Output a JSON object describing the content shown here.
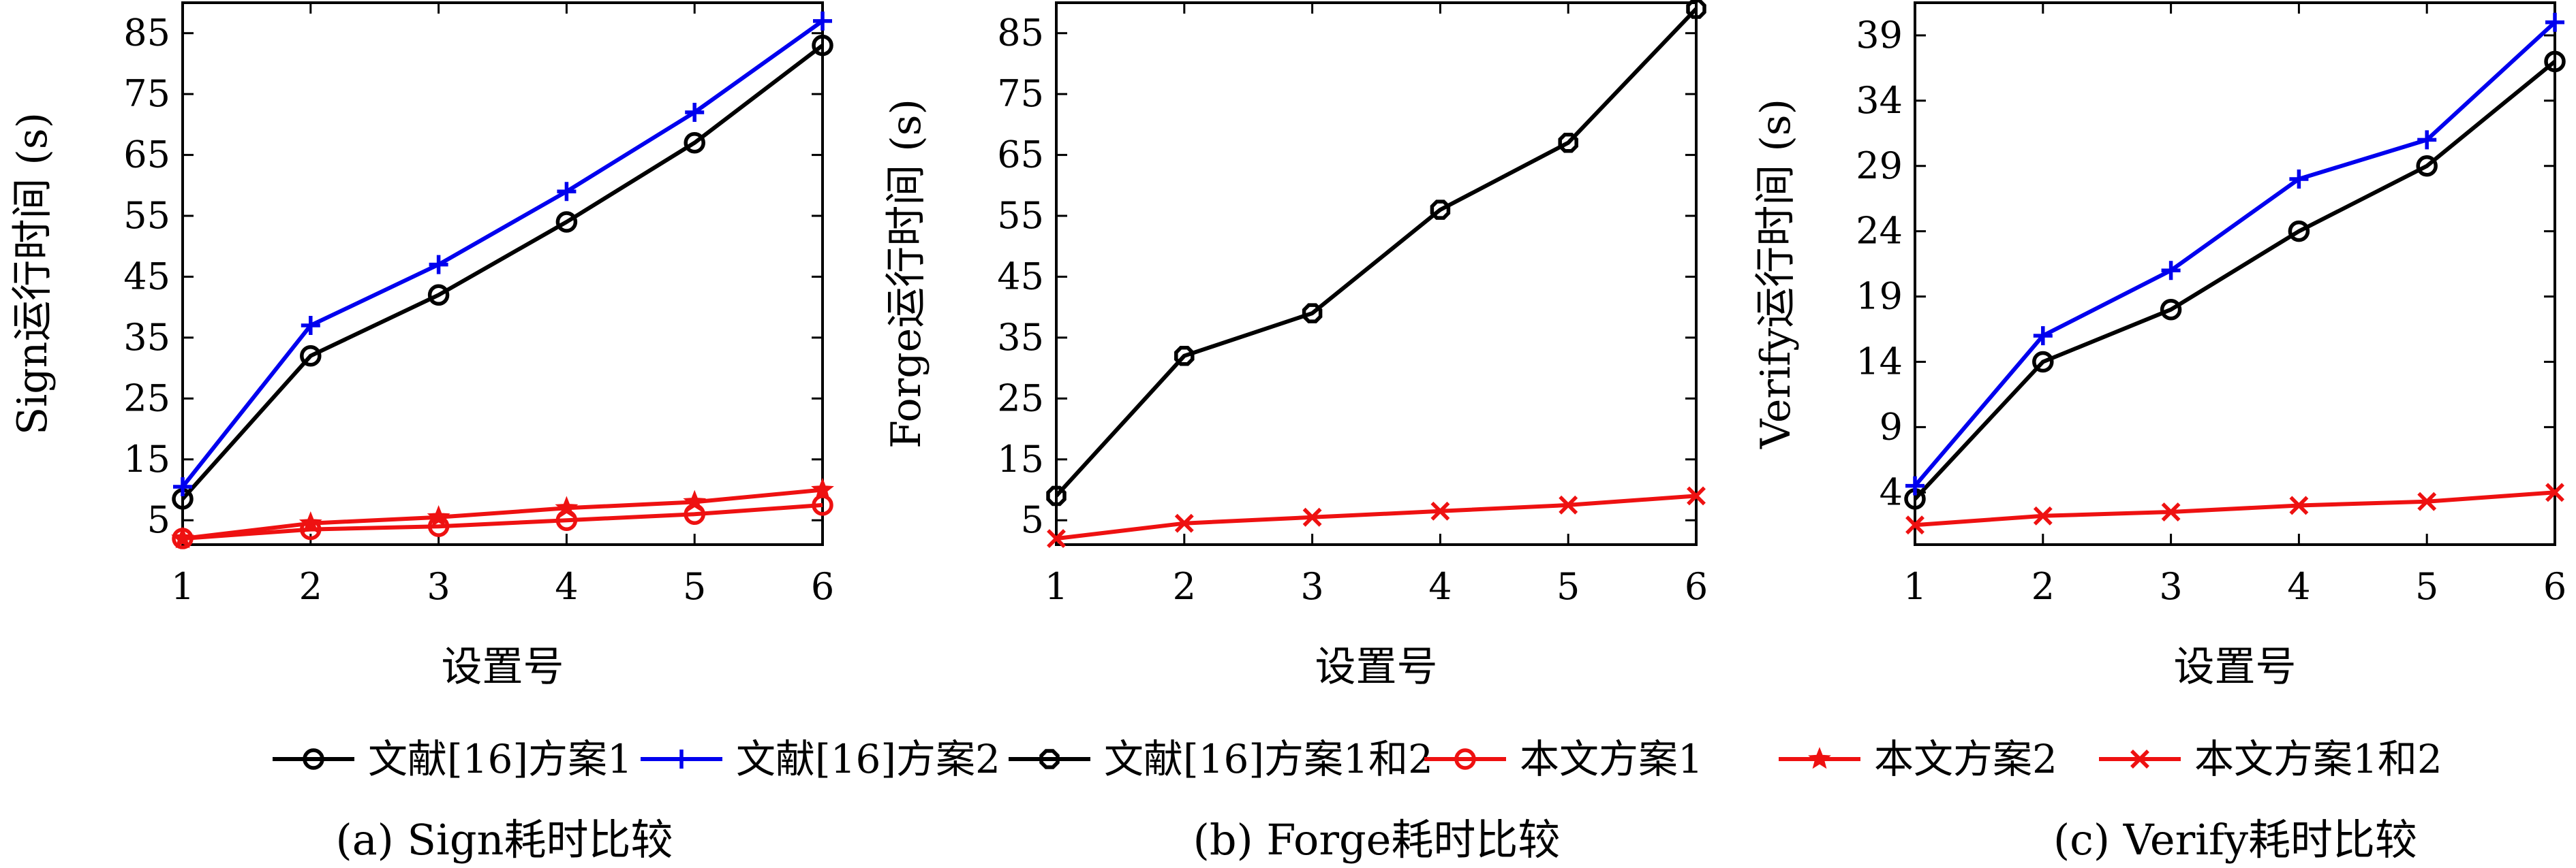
{
  "legend": [
    {
      "label": "文献[16]方案1",
      "color": "#000000",
      "marker": "circle"
    },
    {
      "label": "文献[16]方案2",
      "color": "#0000ee",
      "marker": "plus"
    },
    {
      "label": "文献[16]方案1和2",
      "color": "#000000",
      "marker": "diamond"
    },
    {
      "label": "本文方案1",
      "color": "#ee1111",
      "marker": "circle"
    },
    {
      "label": "本文方案2",
      "color": "#ee1111",
      "marker": "star"
    },
    {
      "label": "本文方案1和2",
      "color": "#ee1111",
      "marker": "cross"
    }
  ],
  "chart_data": [
    {
      "type": "line",
      "caption": "(a) Sign耗时比较",
      "xlabel": "设置号",
      "ylabel": "Sign运行时间 (s)",
      "x": [
        1,
        2,
        3,
        4,
        5,
        6
      ],
      "xticks": [
        1,
        2,
        3,
        4,
        5,
        6
      ],
      "yticks": [
        5,
        15,
        25,
        35,
        45,
        55,
        65,
        75,
        85
      ],
      "xlim": [
        1,
        6
      ],
      "ylim": [
        1,
        90
      ],
      "grid": false,
      "series": [
        {
          "name": "文献[16]方案1",
          "color": "#000000",
          "marker": "circle",
          "values": [
            8.5,
            32,
            42,
            54,
            67,
            83
          ]
        },
        {
          "name": "文献[16]方案2",
          "color": "#0000ee",
          "marker": "plus",
          "values": [
            10.5,
            37,
            47,
            59,
            72,
            87
          ]
        },
        {
          "name": "本文方案1",
          "color": "#ee1111",
          "marker": "circle",
          "values": [
            2,
            3.5,
            4,
            5,
            6,
            7.5
          ]
        },
        {
          "name": "本文方案2",
          "color": "#ee1111",
          "marker": "star",
          "values": [
            2,
            4.5,
            5.5,
            7,
            8,
            10
          ]
        }
      ]
    },
    {
      "type": "line",
      "caption": "(b) Forge耗时比较",
      "xlabel": "设置号",
      "ylabel": "Forge运行时间 (s)",
      "x": [
        1,
        2,
        3,
        4,
        5,
        6
      ],
      "xticks": [
        1,
        2,
        3,
        4,
        5,
        6
      ],
      "yticks": [
        5,
        15,
        25,
        35,
        45,
        55,
        65,
        75,
        85
      ],
      "xlim": [
        1,
        6
      ],
      "ylim": [
        1,
        90
      ],
      "grid": false,
      "series": [
        {
          "name": "文献[16]方案1和2",
          "color": "#000000",
          "marker": "diamond",
          "values": [
            9,
            32,
            39,
            56,
            67,
            89
          ]
        },
        {
          "name": "本文方案1和2",
          "color": "#ee1111",
          "marker": "cross",
          "values": [
            2,
            4.5,
            5.5,
            6.5,
            7.5,
            9
          ]
        }
      ]
    },
    {
      "type": "line",
      "caption": "(c) Verify耗时比较",
      "xlabel": "设置号",
      "ylabel": "Verify运行时间 (s)",
      "x": [
        1,
        2,
        3,
        4,
        5,
        6
      ],
      "xticks": [
        1,
        2,
        3,
        4,
        5,
        6
      ],
      "yticks": [
        4,
        9,
        14,
        19,
        24,
        29,
        34,
        39
      ],
      "xlim": [
        1,
        6
      ],
      "ylim": [
        0,
        41.5
      ],
      "grid": false,
      "series": [
        {
          "name": "文献[16]方案1",
          "color": "#000000",
          "marker": "circle",
          "values": [
            3.5,
            14,
            18,
            24,
            29,
            37
          ]
        },
        {
          "name": "文献[16]方案2",
          "color": "#0000ee",
          "marker": "plus",
          "values": [
            4.5,
            16,
            21,
            28,
            31,
            40
          ]
        },
        {
          "name": "本文方案1和2",
          "color": "#ee1111",
          "marker": "cross",
          "values": [
            1.5,
            2.2,
            2.5,
            3,
            3.3,
            4
          ]
        }
      ]
    }
  ]
}
